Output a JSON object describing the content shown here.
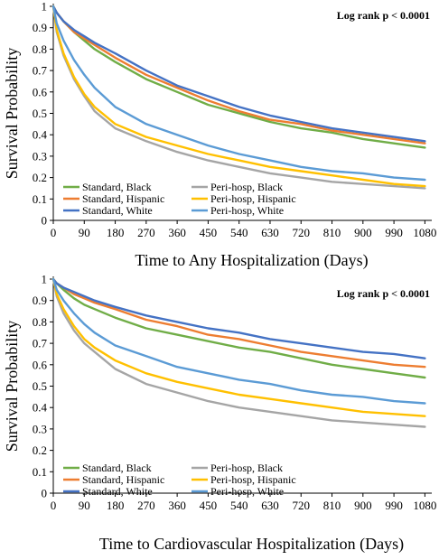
{
  "chart_data": [
    {
      "type": "line",
      "xlabel": "Time to Any Hospitalization (Days)",
      "ylabel": "Survival Probability",
      "annotation": "Log rank p < 0.0001",
      "xlim": [
        0,
        1100
      ],
      "ylim": [
        0,
        1
      ],
      "xticks": [
        "0",
        "90",
        "180",
        "270",
        "360",
        "450",
        "540",
        "630",
        "720",
        "810",
        "900",
        "990",
        "1080"
      ],
      "yticks": [
        "0",
        "0.1",
        "0.2",
        "0.3",
        "0.4",
        "0.5",
        "0.6",
        "0.7",
        "0.8",
        "0.9",
        "1"
      ],
      "grid": false,
      "legend_position": "bottom-left",
      "series": [
        {
          "name": "Standard, Black",
          "color": "#70ad47",
          "x": [
            0,
            10,
            30,
            60,
            90,
            120,
            180,
            270,
            360,
            450,
            540,
            630,
            720,
            810,
            900,
            990,
            1080
          ],
          "y": [
            1,
            0.97,
            0.93,
            0.88,
            0.84,
            0.8,
            0.74,
            0.66,
            0.6,
            0.54,
            0.5,
            0.46,
            0.43,
            0.41,
            0.38,
            0.36,
            0.34
          ]
        },
        {
          "name": "Standard, Hispanic",
          "color": "#ed7d31",
          "x": [
            0,
            10,
            30,
            60,
            90,
            120,
            180,
            270,
            360,
            450,
            540,
            630,
            720,
            810,
            900,
            990,
            1080
          ],
          "y": [
            1,
            0.97,
            0.93,
            0.88,
            0.85,
            0.82,
            0.76,
            0.68,
            0.62,
            0.56,
            0.51,
            0.47,
            0.45,
            0.42,
            0.4,
            0.38,
            0.36
          ]
        },
        {
          "name": "Standard, White",
          "color": "#4472c4",
          "x": [
            0,
            10,
            30,
            60,
            90,
            120,
            180,
            270,
            360,
            450,
            540,
            630,
            720,
            810,
            900,
            990,
            1080
          ],
          "y": [
            1,
            0.97,
            0.93,
            0.89,
            0.86,
            0.83,
            0.78,
            0.7,
            0.63,
            0.58,
            0.53,
            0.49,
            0.46,
            0.43,
            0.41,
            0.39,
            0.37
          ]
        },
        {
          "name": "Peri-hosp, Black",
          "color": "#a5a5a5",
          "x": [
            0,
            10,
            30,
            60,
            90,
            120,
            180,
            270,
            360,
            450,
            540,
            630,
            720,
            810,
            900,
            990,
            1080
          ],
          "y": [
            1,
            0.88,
            0.77,
            0.66,
            0.58,
            0.51,
            0.43,
            0.37,
            0.32,
            0.28,
            0.25,
            0.22,
            0.2,
            0.18,
            0.17,
            0.16,
            0.15
          ]
        },
        {
          "name": "Peri-hosp, Hispanic",
          "color": "#ffc000",
          "x": [
            0,
            10,
            30,
            60,
            90,
            120,
            180,
            270,
            360,
            450,
            540,
            630,
            720,
            810,
            900,
            990,
            1080
          ],
          "y": [
            1,
            0.89,
            0.78,
            0.67,
            0.59,
            0.53,
            0.45,
            0.39,
            0.35,
            0.31,
            0.28,
            0.25,
            0.23,
            0.21,
            0.19,
            0.17,
            0.16
          ]
        },
        {
          "name": "Peri-hosp, White",
          "color": "#5b9bd5",
          "x": [
            0,
            10,
            30,
            60,
            90,
            120,
            180,
            270,
            360,
            450,
            540,
            630,
            720,
            810,
            900,
            990,
            1080
          ],
          "y": [
            1,
            0.92,
            0.84,
            0.75,
            0.68,
            0.62,
            0.53,
            0.45,
            0.4,
            0.35,
            0.31,
            0.28,
            0.25,
            0.23,
            0.22,
            0.2,
            0.19
          ]
        }
      ]
    },
    {
      "type": "line",
      "xlabel": "Time to Cardiovascular Hospitalization (Days)",
      "ylabel": "Survival Probability",
      "annotation": "Log rank p < 0.0001",
      "xlim": [
        0,
        1100
      ],
      "ylim": [
        0,
        1
      ],
      "xticks": [
        "0",
        "90",
        "180",
        "270",
        "360",
        "450",
        "540",
        "630",
        "720",
        "810",
        "900",
        "990",
        "1080"
      ],
      "yticks": [
        "0",
        "0.1",
        "0.2",
        "0.3",
        "0.4",
        "0.5",
        "0.6",
        "0.7",
        "0.8",
        "0.9",
        "1"
      ],
      "grid": false,
      "legend_position": "bottom-left",
      "series": [
        {
          "name": "Standard, Black",
          "color": "#70ad47",
          "x": [
            0,
            10,
            30,
            60,
            90,
            120,
            180,
            270,
            360,
            450,
            540,
            630,
            720,
            810,
            900,
            990,
            1080
          ],
          "y": [
            1,
            0.98,
            0.95,
            0.91,
            0.88,
            0.86,
            0.82,
            0.77,
            0.74,
            0.71,
            0.68,
            0.66,
            0.63,
            0.6,
            0.58,
            0.56,
            0.54
          ]
        },
        {
          "name": "Standard, Hispanic",
          "color": "#ed7d31",
          "x": [
            0,
            10,
            30,
            60,
            90,
            120,
            180,
            270,
            360,
            450,
            540,
            630,
            720,
            810,
            900,
            990,
            1080
          ],
          "y": [
            1,
            0.98,
            0.96,
            0.93,
            0.91,
            0.89,
            0.86,
            0.81,
            0.78,
            0.74,
            0.72,
            0.69,
            0.66,
            0.64,
            0.62,
            0.6,
            0.59
          ]
        },
        {
          "name": "Standard, White",
          "color": "#4472c4",
          "x": [
            0,
            10,
            30,
            60,
            90,
            120,
            180,
            270,
            360,
            450,
            540,
            630,
            720,
            810,
            900,
            990,
            1080
          ],
          "y": [
            1,
            0.98,
            0.96,
            0.94,
            0.92,
            0.9,
            0.87,
            0.83,
            0.8,
            0.77,
            0.75,
            0.72,
            0.7,
            0.68,
            0.66,
            0.65,
            0.63
          ]
        },
        {
          "name": "Peri-hosp, Black",
          "color": "#a5a5a5",
          "x": [
            0,
            10,
            30,
            60,
            90,
            120,
            180,
            270,
            360,
            450,
            540,
            630,
            720,
            810,
            900,
            990,
            1080
          ],
          "y": [
            1,
            0.92,
            0.84,
            0.76,
            0.7,
            0.66,
            0.58,
            0.51,
            0.47,
            0.43,
            0.4,
            0.38,
            0.36,
            0.34,
            0.33,
            0.32,
            0.31
          ]
        },
        {
          "name": "Peri-hosp, Hispanic",
          "color": "#ffc000",
          "x": [
            0,
            10,
            30,
            60,
            90,
            120,
            180,
            270,
            360,
            450,
            540,
            630,
            720,
            810,
            900,
            990,
            1080
          ],
          "y": [
            1,
            0.93,
            0.86,
            0.78,
            0.72,
            0.68,
            0.62,
            0.56,
            0.52,
            0.49,
            0.46,
            0.44,
            0.42,
            0.4,
            0.38,
            0.37,
            0.36
          ]
        },
        {
          "name": "Peri-hosp, White",
          "color": "#5b9bd5",
          "x": [
            0,
            10,
            30,
            60,
            90,
            120,
            180,
            270,
            360,
            450,
            540,
            630,
            720,
            810,
            900,
            990,
            1080
          ],
          "y": [
            1,
            0.95,
            0.9,
            0.84,
            0.79,
            0.75,
            0.69,
            0.64,
            0.59,
            0.56,
            0.53,
            0.51,
            0.48,
            0.46,
            0.45,
            0.43,
            0.42
          ]
        }
      ]
    }
  ]
}
